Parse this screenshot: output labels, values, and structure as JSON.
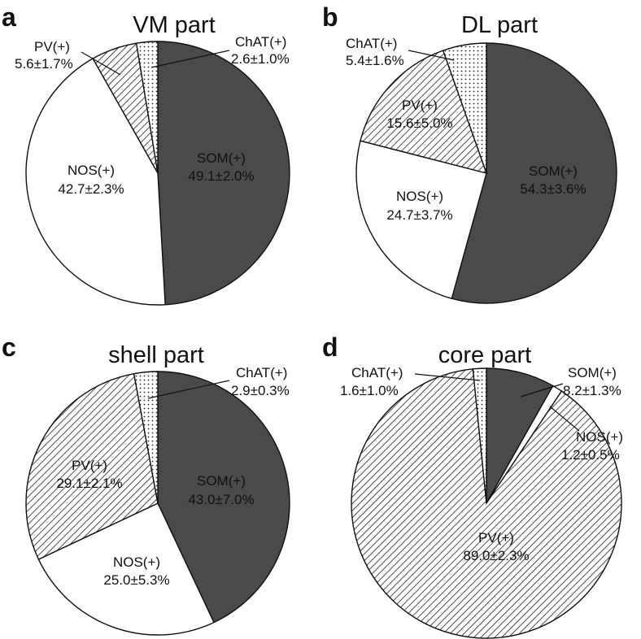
{
  "colors": {
    "SOM": "#4a4a4a",
    "NOS": "#ffffff",
    "PV": "hatch",
    "ChAT": "dots",
    "stroke": "#111111"
  },
  "chart_data": [
    {
      "type": "pie",
      "panel": "a",
      "title": "VM part",
      "slices": [
        {
          "name": "SOM(+)",
          "value": 49.1,
          "label": "49.1±2.0%"
        },
        {
          "name": "NOS(+)",
          "value": 42.7,
          "label": "42.7±2.3%"
        },
        {
          "name": "PV(+)",
          "value": 5.6,
          "label": "5.6±1.7%"
        },
        {
          "name": "ChAT(+)",
          "value": 2.6,
          "label": "2.6±1.0%"
        }
      ]
    },
    {
      "type": "pie",
      "panel": "b",
      "title": "DL part",
      "slices": [
        {
          "name": "SOM(+)",
          "value": 54.3,
          "label": "54.3±3.6%"
        },
        {
          "name": "NOS(+)",
          "value": 24.7,
          "label": "24.7±3.7%"
        },
        {
          "name": "PV(+)",
          "value": 15.6,
          "label": "15.6±5.0%"
        },
        {
          "name": "ChAT(+)",
          "value": 5.4,
          "label": "5.4±1.6%"
        }
      ]
    },
    {
      "type": "pie",
      "panel": "c",
      "title": "shell part",
      "slices": [
        {
          "name": "SOM(+)",
          "value": 43.0,
          "label": "43.0±7.0%"
        },
        {
          "name": "NOS(+)",
          "value": 25.0,
          "label": "25.0±5.3%"
        },
        {
          "name": "PV(+)",
          "value": 29.1,
          "label": "29.1±2.1%"
        },
        {
          "name": "ChAT(+)",
          "value": 2.9,
          "label": "2.9±0.3%"
        }
      ]
    },
    {
      "type": "pie",
      "panel": "d",
      "title": "core part",
      "slices": [
        {
          "name": "SOM(+)",
          "value": 8.2,
          "label": "8.2±1.3%"
        },
        {
          "name": "NOS(+)",
          "value": 1.2,
          "label": "1.2±0.5%"
        },
        {
          "name": "PV(+)",
          "value": 89.0,
          "label": "89.0±2.3%"
        },
        {
          "name": "ChAT(+)",
          "value": 1.6,
          "label": "1.6±1.0%"
        }
      ]
    }
  ]
}
